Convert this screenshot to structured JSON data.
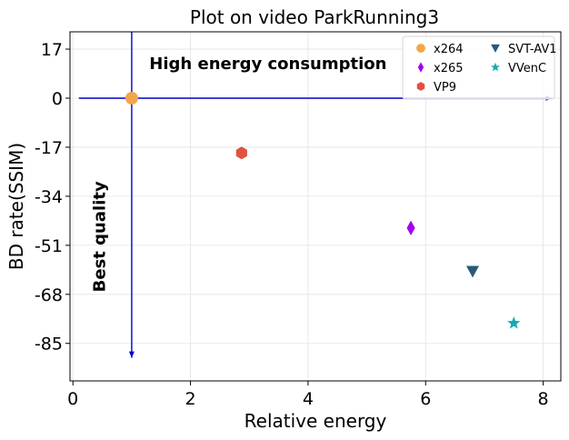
{
  "chart_data": {
    "type": "scatter",
    "title": "Plot on video ParkRunning3",
    "xlabel": "Relative energy",
    "ylabel": "BD rate(SSIM)",
    "xlim": [
      -0.05,
      8.3
    ],
    "ylim": [
      -98,
      23
    ],
    "xticks": [
      0,
      2,
      4,
      6,
      8
    ],
    "yticks": [
      17,
      0,
      -17,
      -34,
      -51,
      -68,
      -85
    ],
    "grid": true,
    "legend_position": "top-right",
    "legend_columns": 2,
    "series": [
      {
        "name": "x264",
        "marker": "circle",
        "color": "#f2a64a",
        "points": [
          {
            "x": 1.0,
            "y": 0
          }
        ]
      },
      {
        "name": "x265",
        "marker": "diamond",
        "color": "#a400f0",
        "points": [
          {
            "x": 5.75,
            "y": -45
          }
        ]
      },
      {
        "name": "VP9",
        "marker": "hexagon",
        "color": "#e2513f",
        "points": [
          {
            "x": 2.87,
            "y": -19
          }
        ]
      },
      {
        "name": "SVT-AV1",
        "marker": "triangle-down",
        "color": "#295879",
        "points": [
          {
            "x": 6.8,
            "y": -60
          }
        ]
      },
      {
        "name": "VVenC",
        "marker": "star",
        "color": "#16aab3",
        "points": [
          {
            "x": 7.5,
            "y": -78
          }
        ]
      }
    ],
    "annotations": [
      {
        "text": "High energy consumption",
        "direction": "right",
        "at": {
          "x": 1.3,
          "y": 12
        }
      },
      {
        "text": "Best quality",
        "direction": "down",
        "at": {
          "x": 0.45,
          "y": -48
        }
      }
    ],
    "reference_lines": [
      {
        "from": {
          "x": 0.1,
          "y": 0
        },
        "to": {
          "x": 8.15,
          "y": 0
        },
        "color": "#0000cc"
      },
      {
        "from": {
          "x": 1.0,
          "y": 23
        },
        "to": {
          "x": 1.0,
          "y": -90
        },
        "color": "#0000cc"
      }
    ]
  }
}
